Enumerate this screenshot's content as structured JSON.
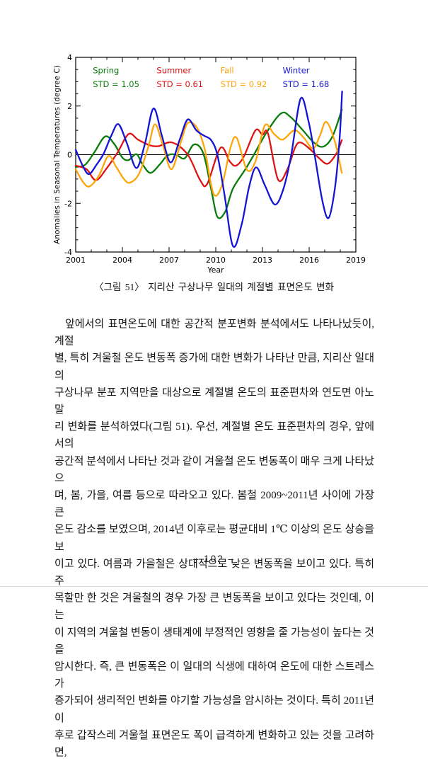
{
  "figure": {
    "caption": "〈그림 51〉 지리산 구상나무 일대의 계절별 표면온도 변화"
  },
  "paragraph": {
    "lines": [
      "앞에서의 표면온도에 대한 공간적 분포변화 분석에서도 나타나났듯이, 계절",
      "별, 특히 겨울철 온도 변동폭 증가에 대한 변화가 나타난 만큼, 지리산 일대의",
      "구상나무 분포 지역만을 대상으로 계절별 온도의 표준편차와 연도면 아노말",
      "리 변화를 분석하였다(그림 51). 우선, 계절별 온도 표준편차의 경우, 앞에서의",
      "공간적 분석에서 나타난 것과 같이 겨울철 온도 변동폭이 매우 크게 나타났으",
      "며, 봄, 가을, 여름 등으로 따라오고 있다. 봄철 2009~2011년 사이에 가장 큰",
      "온도 감소를 보였으며, 2014년 이후로는 평균대비 1℃ 이상의 온도 상승을 보",
      "이고 있다. 여름과 가을철은 상대적으로 낮은 변동폭을 보이고 있다. 특히 주",
      "목할만 한 것은 겨울철의 경우 가장 큰 변동폭을 보이고 있다는 것인데, 이는",
      "이 지역의 겨울철 변동이 생태계에 부정적인 영향을 줄 가능성이 높다는 것을",
      "암시한다. 즉, 큰 변동폭은 이 일대의 식생에 대하여 온도에 대한 스트레스가",
      "증가되어 생리적인 변화를 야기할 가능성을 암시하는 것이다. 특히 2011년 이",
      "후로 갑작스레 겨울철 표면온도 폭이 급격하게 변화하고 있는 것을 고려하면,"
    ]
  },
  "footer": {
    "page_label": "– 102 –"
  },
  "chart_data": {
    "type": "line",
    "title": "",
    "xlabel": "Year",
    "ylabel": "Anomalies in Seasonal Temperatures (degree C)",
    "xlim": [
      2001,
      2019
    ],
    "ylim": [
      -4,
      4
    ],
    "x_major_ticks": [
      2001,
      2004,
      2007,
      2010,
      2013,
      2016,
      2019
    ],
    "x_minor_step": 1,
    "y_major_ticks": [
      -4,
      -2,
      0,
      2,
      4
    ],
    "y_minor_step": 0.5,
    "zero_line": true,
    "grid": false,
    "legend_position": "inside-top",
    "legend_value_y": [
      3.35,
      2.78
    ],
    "axis_color": "#000000",
    "series": [
      {
        "name": "Spring",
        "std_label": "STD = 1.05",
        "color": "#0a7c0a",
        "legend_year": 2002.1,
        "points": [
          [
            2001.0,
            -0.5
          ],
          [
            2001.6,
            -0.42
          ],
          [
            2002.2,
            0.1
          ],
          [
            2002.9,
            0.75
          ],
          [
            2003.5,
            0.42
          ],
          [
            2004.0,
            -0.12
          ],
          [
            2004.4,
            -0.22
          ],
          [
            2004.9,
            0.02
          ],
          [
            2005.3,
            -0.4
          ],
          [
            2005.8,
            -0.75
          ],
          [
            2006.4,
            -0.4
          ],
          [
            2006.9,
            -0.03
          ],
          [
            2007.45,
            0.0
          ],
          [
            2008.0,
            -0.15
          ],
          [
            2008.6,
            0.42
          ],
          [
            2009.2,
            0.05
          ],
          [
            2009.7,
            -1.4
          ],
          [
            2010.1,
            -2.55
          ],
          [
            2010.6,
            -2.35
          ],
          [
            2011.1,
            -1.4
          ],
          [
            2011.9,
            -0.6
          ],
          [
            2012.45,
            0.0
          ],
          [
            2013.3,
            0.95
          ],
          [
            2014.2,
            1.7
          ],
          [
            2014.8,
            1.55
          ],
          [
            2015.6,
            1.0
          ],
          [
            2016.3,
            0.5
          ],
          [
            2016.9,
            0.33
          ],
          [
            2017.5,
            0.75
          ],
          [
            2018.1,
            1.85
          ]
        ]
      },
      {
        "name": "Summer",
        "std_label": "STD = 0.61",
        "color": "#de1313",
        "legend_year": 2006.2,
        "points": [
          [
            2001.0,
            -0.45
          ],
          [
            2001.7,
            -0.6
          ],
          [
            2002.3,
            -1.05
          ],
          [
            2003.0,
            -0.55
          ],
          [
            2003.7,
            0.1
          ],
          [
            2004.4,
            0.85
          ],
          [
            2005.0,
            0.62
          ],
          [
            2005.7,
            0.4
          ],
          [
            2006.3,
            0.35
          ],
          [
            2007.2,
            0.5
          ],
          [
            2008.2,
            0.0
          ],
          [
            2009.0,
            -1.05
          ],
          [
            2009.45,
            -1.2
          ],
          [
            2010.3,
            0.28
          ],
          [
            2010.9,
            -0.28
          ],
          [
            2011.3,
            -0.45
          ],
          [
            2011.8,
            -0.08
          ],
          [
            2012.55,
            1.0
          ],
          [
            2013.0,
            0.82
          ],
          [
            2013.35,
            0.88
          ],
          [
            2014.0,
            -1.02
          ],
          [
            2014.6,
            -0.6
          ],
          [
            2015.1,
            0.3
          ],
          [
            2015.45,
            0.5
          ],
          [
            2016.1,
            0.2
          ],
          [
            2016.7,
            -0.18
          ],
          [
            2017.2,
            -0.37
          ],
          [
            2017.75,
            0.05
          ],
          [
            2018.1,
            0.6
          ]
        ]
      },
      {
        "name": "Fall",
        "std_label": "STD = 0.92",
        "color": "#ffa50a",
        "legend_year": 2010.3,
        "points": [
          [
            2001.0,
            -0.6
          ],
          [
            2001.5,
            -1.15
          ],
          [
            2001.9,
            -1.3
          ],
          [
            2002.5,
            -0.85
          ],
          [
            2003.1,
            -0.05
          ],
          [
            2003.6,
            -0.5
          ],
          [
            2004.1,
            -1.0
          ],
          [
            2004.5,
            -1.15
          ],
          [
            2005.1,
            -0.75
          ],
          [
            2005.7,
            0.4
          ],
          [
            2006.1,
            1.25
          ],
          [
            2006.6,
            0.4
          ],
          [
            2007.15,
            -0.6
          ],
          [
            2007.75,
            0.5
          ],
          [
            2008.2,
            1.3
          ],
          [
            2008.8,
            1.1
          ],
          [
            2009.3,
            0.2
          ],
          [
            2009.85,
            -1.6
          ],
          [
            2010.4,
            -1.25
          ],
          [
            2010.95,
            0.3
          ],
          [
            2011.35,
            0.68
          ],
          [
            2012.0,
            -0.62
          ],
          [
            2012.55,
            -0.28
          ],
          [
            2013.15,
            1.2
          ],
          [
            2013.75,
            0.85
          ],
          [
            2014.3,
            0.62
          ],
          [
            2015.05,
            1.0
          ],
          [
            2015.65,
            0.7
          ],
          [
            2016.25,
            0.25
          ],
          [
            2016.7,
            0.8
          ],
          [
            2017.1,
            1.35
          ],
          [
            2017.65,
            0.55
          ],
          [
            2018.1,
            -0.75
          ]
        ]
      },
      {
        "name": "Winter",
        "std_label": "STD = 1.68",
        "color": "#1414d6",
        "legend_year": 2014.3,
        "points": [
          [
            2001.0,
            0.2
          ],
          [
            2001.45,
            -0.45
          ],
          [
            2001.85,
            -0.8
          ],
          [
            2002.35,
            -0.4
          ],
          [
            2002.8,
            0.05
          ],
          [
            2003.3,
            0.8
          ],
          [
            2003.75,
            1.25
          ],
          [
            2004.3,
            0.45
          ],
          [
            2004.9,
            -0.55
          ],
          [
            2005.45,
            0.45
          ],
          [
            2006.0,
            1.9
          ],
          [
            2006.55,
            0.75
          ],
          [
            2007.1,
            -0.32
          ],
          [
            2007.7,
            0.65
          ],
          [
            2008.2,
            1.45
          ],
          [
            2008.75,
            1.0
          ],
          [
            2009.25,
            0.78
          ],
          [
            2009.7,
            0.6
          ],
          [
            2010.1,
            0.0
          ],
          [
            2010.55,
            -1.6
          ],
          [
            2011.1,
            -3.75
          ],
          [
            2011.65,
            -2.9
          ],
          [
            2012.15,
            -1.3
          ],
          [
            2012.6,
            -0.52
          ],
          [
            2013.15,
            -1.25
          ],
          [
            2013.8,
            -2.05
          ],
          [
            2014.35,
            -1.4
          ],
          [
            2014.85,
            0.0
          ],
          [
            2015.45,
            2.3
          ],
          [
            2015.95,
            1.4
          ],
          [
            2016.35,
            0.0
          ],
          [
            2016.85,
            -1.9
          ],
          [
            2017.25,
            -2.6
          ],
          [
            2017.65,
            -1.4
          ],
          [
            2017.95,
            0.6
          ],
          [
            2018.12,
            2.6
          ]
        ]
      }
    ]
  }
}
